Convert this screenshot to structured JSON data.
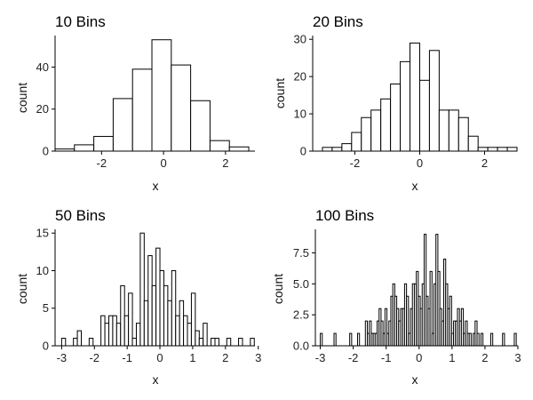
{
  "chart_data": [
    {
      "type": "bar",
      "title": "10 Bins",
      "xlabel": "x",
      "ylabel": "count",
      "xlim": [
        -3.5,
        2.95
      ],
      "ylim": [
        0,
        55
      ],
      "xticks": [
        -2,
        0,
        2
      ],
      "xtick_labels": [
        "-2",
        "0",
        "2"
      ],
      "yticks": [
        0,
        20,
        40
      ],
      "ytick_labels": [
        "0",
        "20",
        "40"
      ],
      "bin_edges": [
        -3.5,
        -2.875,
        -2.25,
        -1.625,
        -1.0,
        -0.375,
        0.25,
        0.875,
        1.5,
        2.125,
        2.75
      ],
      "values": [
        1,
        3,
        7,
        25,
        39,
        53,
        41,
        24,
        5,
        2
      ]
    },
    {
      "type": "bar",
      "title": "20 Bins",
      "xlabel": "x",
      "ylabel": "count",
      "xlim": [
        -3.3,
        3.0
      ],
      "ylim": [
        0,
        31
      ],
      "xticks": [
        -2,
        0,
        2
      ],
      "xtick_labels": [
        "-2",
        "0",
        "2"
      ],
      "yticks": [
        0,
        10,
        20,
        30
      ],
      "ytick_labels": [
        "0",
        "10",
        "20",
        "30"
      ],
      "bin_edges": [
        -3.0,
        -2.7,
        -2.4,
        -2.1,
        -1.8,
        -1.5,
        -1.2,
        -0.9,
        -0.6,
        -0.3,
        0.0,
        0.3,
        0.6,
        0.9,
        1.2,
        1.5,
        1.8,
        2.1,
        2.4,
        2.7,
        3.0
      ],
      "values": [
        1,
        1,
        2,
        5,
        9,
        11,
        14,
        18,
        24,
        29,
        19,
        27,
        11,
        11,
        9,
        4,
        1,
        1,
        1,
        1
      ]
    },
    {
      "type": "bar",
      "title": "50 Bins",
      "xlabel": "x",
      "ylabel": "count",
      "xlim": [
        -3.2,
        2.9
      ],
      "ylim": [
        0,
        15.5
      ],
      "xticks": [
        -3,
        -2,
        -1,
        0,
        1,
        2,
        3
      ],
      "xtick_labels": [
        "-3",
        "-2",
        "-1",
        "0",
        "1",
        "2",
        "3"
      ],
      "yticks": [
        0,
        5,
        10,
        15
      ],
      "ytick_labels": [
        "0",
        "5",
        "10",
        "15"
      ],
      "bin_edges": [
        -3.0,
        -2.88,
        -2.76,
        -2.64,
        -2.52,
        -2.4,
        -2.28,
        -2.16,
        -2.04,
        -1.92,
        -1.8,
        -1.68,
        -1.56,
        -1.44,
        -1.32,
        -1.2,
        -1.08,
        -0.96,
        -0.84,
        -0.72,
        -0.6,
        -0.48,
        -0.36,
        -0.24,
        -0.12,
        0.0,
        0.12,
        0.24,
        0.36,
        0.48,
        0.6,
        0.72,
        0.84,
        0.96,
        1.08,
        1.2,
        1.32,
        1.44,
        1.56,
        1.68,
        1.8,
        1.92,
        2.04,
        2.16,
        2.28,
        2.4,
        2.52,
        2.64,
        2.76,
        2.88,
        3.0
      ],
      "values": [
        1,
        0,
        0,
        1,
        2,
        0,
        0,
        1,
        0,
        0,
        4,
        3,
        4,
        4,
        3,
        8,
        4,
        7,
        1,
        3,
        15,
        6,
        12,
        8,
        13,
        10,
        8,
        6,
        10,
        4,
        6,
        4,
        3,
        7,
        2,
        1,
        3,
        0,
        1,
        1,
        0,
        0,
        1,
        0,
        0,
        1,
        0,
        0,
        1,
        0
      ]
    },
    {
      "type": "bar",
      "title": "100 Bins",
      "xlabel": "x",
      "ylabel": "count",
      "xlim": [
        -3.15,
        3.0
      ],
      "ylim": [
        0,
        9.4
      ],
      "xticks": [
        -3,
        -2,
        -1,
        0,
        1,
        2,
        3
      ],
      "xtick_labels": [
        "-3",
        "-2",
        "-1",
        "0",
        "1",
        "2",
        "3"
      ],
      "yticks": [
        0,
        2.5,
        5,
        7.5
      ],
      "ytick_labels": [
        "0.0",
        "2.5",
        "5.0",
        "7.5"
      ],
      "bin_range": [
        -3.0,
        2.95
      ],
      "values": [
        1,
        0,
        0,
        0,
        0,
        0,
        0,
        1,
        0,
        0,
        0,
        0,
        0,
        0,
        0,
        1,
        0,
        0,
        0,
        1,
        0,
        0,
        0,
        2,
        1,
        2,
        1,
        1,
        1,
        2,
        3,
        2,
        1,
        3,
        1,
        2,
        4,
        5,
        4,
        3,
        2,
        3,
        3,
        5,
        4,
        1,
        3,
        5,
        5,
        6,
        4,
        3,
        5,
        9,
        4,
        3,
        6,
        1,
        5,
        9,
        6,
        3,
        2,
        7,
        5,
        3,
        4,
        1,
        2,
        2,
        3,
        2,
        3,
        1,
        2,
        1,
        1,
        0,
        1,
        2,
        1,
        0,
        1,
        0,
        0,
        0,
        0,
        1,
        0,
        0,
        0,
        0,
        0,
        1,
        0,
        0,
        0,
        0,
        0,
        1
      ]
    }
  ]
}
